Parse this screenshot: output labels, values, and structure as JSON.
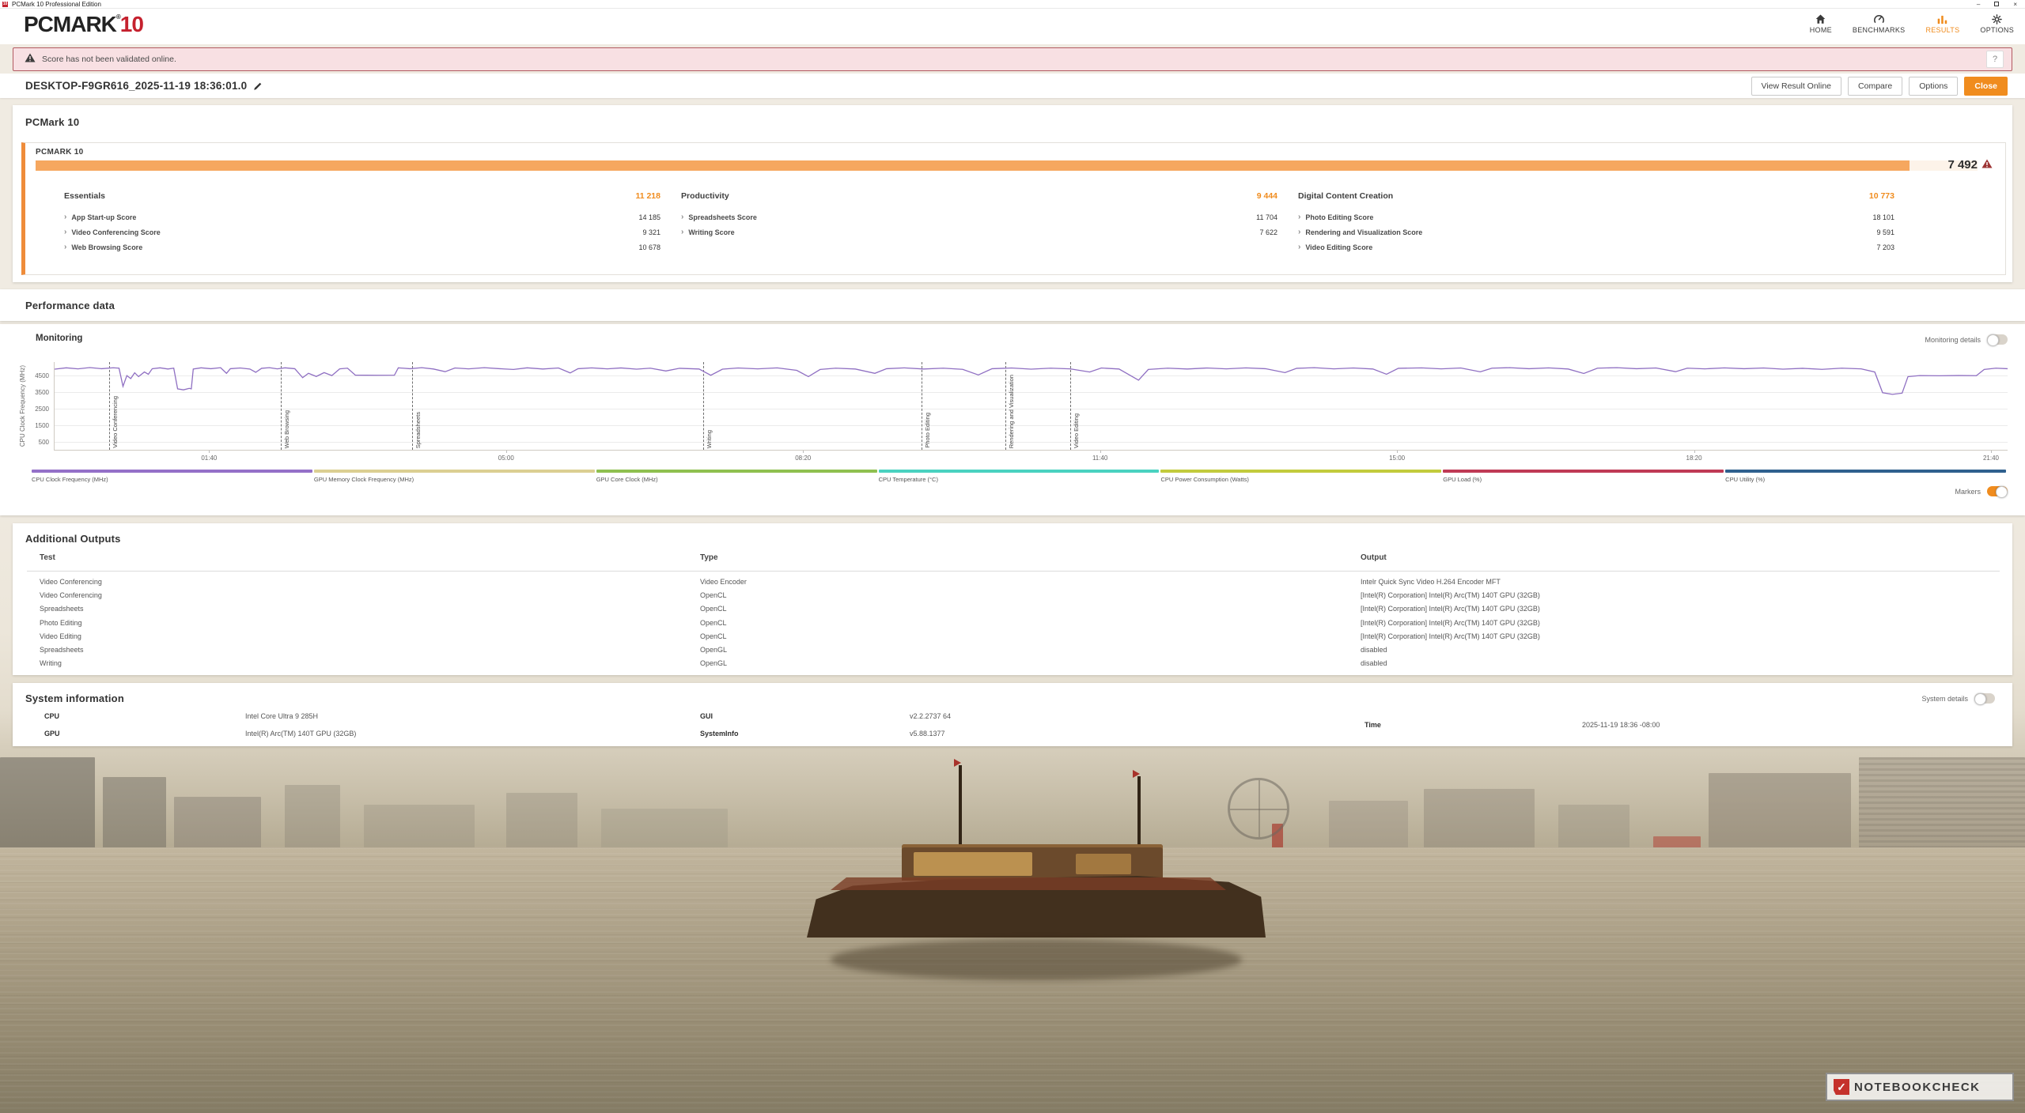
{
  "window": {
    "title": "PCMark 10 Professional Edition",
    "app_icon_text": "10",
    "controls": {
      "minimize": "–",
      "maximize": "",
      "close": "×"
    }
  },
  "header": {
    "logo": {
      "primary": "PCMARK",
      "reg": "®",
      "secondary": "10",
      "primary_color": "#232323",
      "secondary_color": "#c5212e"
    },
    "nav": [
      {
        "label": "HOME",
        "icon": "home-icon",
        "active": false
      },
      {
        "label": "BENCHMARKS",
        "icon": "benchmarks-icon",
        "active": false
      },
      {
        "label": "RESULTS",
        "icon": "results-icon",
        "active": true
      },
      {
        "label": "OPTIONS",
        "icon": "options-icon",
        "active": false
      }
    ],
    "active_color": "#f08c1e"
  },
  "banner": {
    "text": "Score has not been validated online.",
    "help_label": "?",
    "bg": "#f8e0e3",
    "border": "#b25a61"
  },
  "result_header": {
    "title": "DESKTOP-F9GR616_2025-11-19 18:36:01.0",
    "buttons": [
      {
        "label": "View Result Online",
        "primary": false
      },
      {
        "label": "Compare",
        "primary": false
      },
      {
        "label": "Options",
        "primary": false
      },
      {
        "label": "Close",
        "primary": true
      }
    ]
  },
  "score_section": {
    "heading": "PCMark 10",
    "card_title": "PCMARK 10",
    "overall_score": "7 492",
    "bar_fill_pct": 96.5,
    "bar_color": "#f6a75f",
    "groups": [
      {
        "name": "Essentials",
        "score": "11 218",
        "items": [
          {
            "label": "App Start-up Score",
            "value": "14 185"
          },
          {
            "label": "Video Conferencing Score",
            "value": "9 321"
          },
          {
            "label": "Web Browsing Score",
            "value": "10 678"
          }
        ]
      },
      {
        "name": "Productivity",
        "score": "9 444",
        "items": [
          {
            "label": "Spreadsheets Score",
            "value": "11 704"
          },
          {
            "label": "Writing Score",
            "value": "7 622"
          }
        ]
      },
      {
        "name": "Digital Content Creation",
        "score": "10 773",
        "items": [
          {
            "label": "Photo Editing Score",
            "value": "18 101"
          },
          {
            "label": "Rendering and Visualization Score",
            "value": "9 591"
          },
          {
            "label": "Video Editing Score",
            "value": "7 203"
          }
        ]
      }
    ]
  },
  "performance": {
    "heading": "Performance data",
    "monitoring_title": "Monitoring",
    "monitoring_details_label": "Monitoring details",
    "monitoring_details_on": false,
    "markers_label": "Markers",
    "markers_on": true,
    "chart_data": {
      "type": "line",
      "ylabel": "CPU Clock Frequency (MHz)",
      "yticks": [
        500,
        1500,
        2500,
        3500,
        4500
      ],
      "ylim": [
        0,
        5300
      ],
      "xticks": [
        {
          "label": "01:40",
          "pct": 7.95
        },
        {
          "label": "05:00",
          "pct": 23.15
        },
        {
          "label": "08:20",
          "pct": 38.35
        },
        {
          "label": "11:40",
          "pct": 53.55
        },
        {
          "label": "15:00",
          "pct": 68.75
        },
        {
          "label": "18:20",
          "pct": 83.95
        },
        {
          "label": "21:40",
          "pct": 99.15
        }
      ],
      "markers": [
        {
          "label": "Video Conferencing",
          "pct": 2.8
        },
        {
          "label": "Web Browsing",
          "pct": 11.6
        },
        {
          "label": "Spreadsheets",
          "pct": 18.3
        },
        {
          "label": "Writing",
          "pct": 33.2
        },
        {
          "label": "Photo Editing",
          "pct": 44.4
        },
        {
          "label": "Rendering and Visualization",
          "pct": 48.7
        },
        {
          "label": "Video Editing",
          "pct": 52.0
        }
      ],
      "series": [
        {
          "name": "CPU Clock Frequency (MHz)",
          "color": "#8f6fc2",
          "points": [
            [
              0,
              4870
            ],
            [
              0.6,
              4950
            ],
            [
              1.2,
              4890
            ],
            [
              1.8,
              4965
            ],
            [
              2.4,
              4900
            ],
            [
              3.0,
              4955
            ],
            [
              3.3,
              4930
            ],
            [
              3.5,
              3830
            ],
            [
              3.7,
              4480
            ],
            [
              3.9,
              4300
            ],
            [
              4.1,
              4650
            ],
            [
              4.3,
              4420
            ],
            [
              4.6,
              4700
            ],
            [
              4.8,
              4560
            ],
            [
              5.0,
              4900
            ],
            [
              5.4,
              4950
            ],
            [
              5.8,
              4880
            ],
            [
              6.1,
              4930
            ],
            [
              6.3,
              3680
            ],
            [
              6.6,
              3620
            ],
            [
              6.9,
              3710
            ],
            [
              7.0,
              3680
            ],
            [
              7.1,
              4880
            ],
            [
              7.5,
              4950
            ],
            [
              8.0,
              4900
            ],
            [
              8.5,
              4960
            ],
            [
              8.8,
              4620
            ],
            [
              9.0,
              4900
            ],
            [
              9.5,
              4940
            ],
            [
              10.0,
              4880
            ],
            [
              10.3,
              4680
            ],
            [
              10.6,
              4920
            ],
            [
              11.0,
              4960
            ],
            [
              11.4,
              4890
            ],
            [
              11.8,
              4950
            ],
            [
              12.3,
              4900
            ],
            [
              12.7,
              4360
            ],
            [
              13.0,
              4620
            ],
            [
              13.4,
              4430
            ],
            [
              13.8,
              4660
            ],
            [
              14.2,
              4480
            ],
            [
              14.6,
              4890
            ],
            [
              15.0,
              4930
            ],
            [
              15.4,
              4510
            ],
            [
              16.5,
              4500
            ],
            [
              17.4,
              4505
            ],
            [
              17.6,
              4950
            ],
            [
              18.2,
              4900
            ],
            [
              18.8,
              4960
            ],
            [
              19.4,
              4880
            ],
            [
              20.0,
              4720
            ],
            [
              20.5,
              4940
            ],
            [
              21.2,
              4890
            ],
            [
              22.0,
              4960
            ],
            [
              22.8,
              4900
            ],
            [
              23.5,
              4850
            ],
            [
              24.2,
              4950
            ],
            [
              25.0,
              4880
            ],
            [
              25.8,
              4940
            ],
            [
              26.4,
              4640
            ],
            [
              26.8,
              4900
            ],
            [
              27.5,
              4950
            ],
            [
              28.3,
              4890
            ],
            [
              29.0,
              4945
            ],
            [
              29.8,
              4870
            ],
            [
              30.5,
              4930
            ],
            [
              31.3,
              4760
            ],
            [
              32.0,
              4920
            ],
            [
              33.0,
              4880
            ],
            [
              33.6,
              4500
            ],
            [
              34.2,
              4870
            ],
            [
              35.0,
              4940
            ],
            [
              36.0,
              4890
            ],
            [
              37.0,
              4950
            ],
            [
              38.0,
              4800
            ],
            [
              38.6,
              4420
            ],
            [
              39.2,
              4850
            ],
            [
              40.0,
              4930
            ],
            [
              41.0,
              4880
            ],
            [
              42.0,
              4620
            ],
            [
              42.6,
              4900
            ],
            [
              43.5,
              4950
            ],
            [
              44.5,
              4880
            ],
            [
              45.5,
              4930
            ],
            [
              46.5,
              4860
            ],
            [
              47.3,
              4520
            ],
            [
              48.0,
              4900
            ],
            [
              49.0,
              4940
            ],
            [
              50.0,
              4870
            ],
            [
              51.0,
              4930
            ],
            [
              52.0,
              4890
            ],
            [
              53.0,
              4700
            ],
            [
              53.6,
              4940
            ],
            [
              54.5,
              4880
            ],
            [
              55.5,
              4200
            ],
            [
              56.0,
              4850
            ],
            [
              57.0,
              4930
            ],
            [
              58.0,
              4880
            ],
            [
              59.0,
              4940
            ],
            [
              60.0,
              4890
            ],
            [
              61.0,
              4950
            ],
            [
              62.0,
              4900
            ],
            [
              63.0,
              4660
            ],
            [
              63.6,
              4920
            ],
            [
              64.5,
              4960
            ],
            [
              65.5,
              4890
            ],
            [
              66.5,
              4940
            ],
            [
              67.5,
              4880
            ],
            [
              68.2,
              4560
            ],
            [
              68.8,
              4920
            ],
            [
              70.0,
              4950
            ],
            [
              71.0,
              4890
            ],
            [
              72.0,
              4940
            ],
            [
              73.0,
              4710
            ],
            [
              73.6,
              4930
            ],
            [
              74.5,
              4960
            ],
            [
              75.5,
              4900
            ],
            [
              76.5,
              4950
            ],
            [
              77.5,
              4880
            ],
            [
              78.3,
              4610
            ],
            [
              79.0,
              4930
            ],
            [
              80.0,
              4960
            ],
            [
              81.0,
              4900
            ],
            [
              82.0,
              4940
            ],
            [
              83.0,
              4720
            ],
            [
              83.6,
              4930
            ],
            [
              84.5,
              4890
            ],
            [
              85.5,
              4950
            ],
            [
              86.5,
              4900
            ],
            [
              87.5,
              4940
            ],
            [
              88.5,
              4870
            ],
            [
              89.5,
              4920
            ],
            [
              90.5,
              4860
            ],
            [
              91.5,
              4930
            ],
            [
              92.5,
              4890
            ],
            [
              93.2,
              4700
            ],
            [
              93.6,
              3450
            ],
            [
              94.1,
              3350
            ],
            [
              94.6,
              3420
            ],
            [
              94.9,
              4420
            ],
            [
              95.5,
              4480
            ],
            [
              96.5,
              4470
            ],
            [
              97.5,
              4485
            ],
            [
              98.4,
              4475
            ],
            [
              98.8,
              4850
            ],
            [
              99.4,
              4930
            ],
            [
              100,
              4900
            ]
          ]
        }
      ]
    },
    "legend": [
      {
        "label": "CPU Clock Frequency (MHz)",
        "color": "#9470c8"
      },
      {
        "label": "GPU Memory Clock Frequency (MHz)",
        "color": "#dbcf92"
      },
      {
        "label": "GPU Core Clock (MHz)",
        "color": "#8fc050"
      },
      {
        "label": "CPU Temperature (°C)",
        "color": "#4ad2c0"
      },
      {
        "label": "CPU Power Consumption (Watts)",
        "color": "#c2cb3d"
      },
      {
        "label": "GPU Load (%)",
        "color": "#bf3a55"
      },
      {
        "label": "CPU Utility (%)",
        "color": "#2f608e"
      }
    ]
  },
  "outputs": {
    "heading": "Additional Outputs",
    "columns": [
      "Test",
      "Type",
      "Output"
    ],
    "rows": [
      [
        "Video Conferencing",
        "Video Encoder",
        "Intelr Quick Sync Video H.264 Encoder MFT"
      ],
      [
        "Video Conferencing",
        "OpenCL",
        "[Intel(R) Corporation] Intel(R) Arc(TM) 140T GPU (32GB)"
      ],
      [
        "Spreadsheets",
        "OpenCL",
        "[Intel(R) Corporation] Intel(R) Arc(TM) 140T GPU (32GB)"
      ],
      [
        "Photo Editing",
        "OpenCL",
        "[Intel(R) Corporation] Intel(R) Arc(TM) 140T GPU (32GB)"
      ],
      [
        "Video Editing",
        "OpenCL",
        "[Intel(R) Corporation] Intel(R) Arc(TM) 140T GPU (32GB)"
      ],
      [
        "Spreadsheets",
        "OpenGL",
        "disabled"
      ],
      [
        "Writing",
        "OpenGL",
        "disabled"
      ]
    ]
  },
  "system": {
    "heading": "System information",
    "details_label": "System details",
    "details_on": false,
    "rows": [
      {
        "label": "CPU",
        "value": "Intel Core Ultra 9 285H"
      },
      {
        "label": "GPU",
        "value": "Intel(R) Arc(TM) 140T GPU (32GB)"
      },
      {
        "label": "GUI",
        "value": "v2.2.2737 64"
      },
      {
        "label": "SystemInfo",
        "value": "v5.88.1377"
      },
      {
        "label": "Time",
        "value": "2025-11-19 18:36 -08:00"
      }
    ]
  },
  "watermark": {
    "text": "NOTEBOOKCHECK"
  },
  "colors": {
    "accent": "#f08c1e",
    "logo_red": "#c5212e",
    "warning_triangle": "#9d3434"
  }
}
